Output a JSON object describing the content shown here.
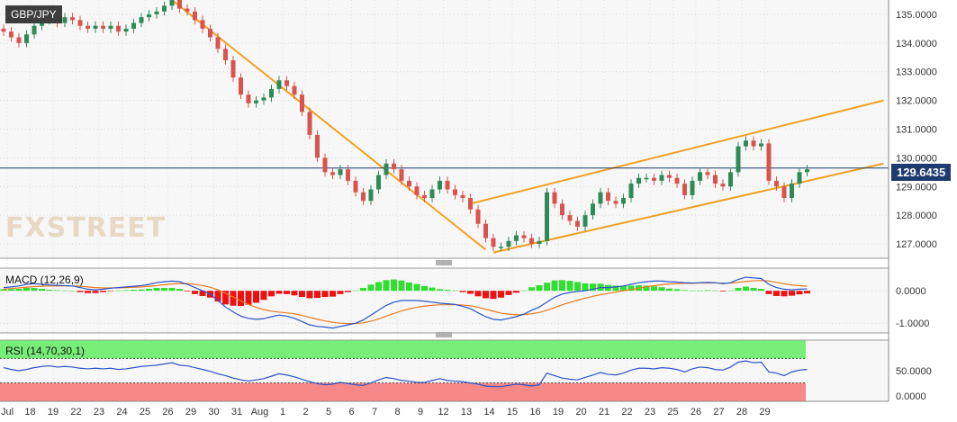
{
  "symbol": "GBP/JPY",
  "current_price": "129.6435",
  "logo_text": "FXSTREET",
  "colors": {
    "up": "#2e8b57",
    "down": "#d9534f",
    "trendline": "#f0a020",
    "price_line": "#1f3a6e",
    "macd_line": "#2a55c8",
    "signal_line": "#e87a20",
    "hist_pos": "#33dd33",
    "hist_neg": "#ee1111",
    "rsi_line": "#2a55c8",
    "rsi_overbought": "#77ee77",
    "rsi_oversold": "#f78888"
  },
  "x_labels": [
    "Jul",
    "18",
    "19",
    "22",
    "23",
    "24",
    "25",
    "26",
    "29",
    "30",
    "31",
    "Aug",
    "1",
    "2",
    "5",
    "6",
    "7",
    "8",
    "9",
    "12",
    "13",
    "14",
    "15",
    "16",
    "19",
    "20",
    "21",
    "22",
    "23",
    "25",
    "26",
    "27",
    "28",
    "29"
  ],
  "chart_data": [
    {
      "type": "candlestick",
      "title": "GBP/JPY",
      "y_ticks": [
        "135.0000",
        "134.0000",
        "133.0000",
        "132.0000",
        "131.0000",
        "130.0000",
        "129.0000",
        "128.0000",
        "127.0000"
      ],
      "ylim": [
        126.5,
        135.5
      ],
      "last_price": 129.6435,
      "closes": [
        134.4,
        134.2,
        134.0,
        134.3,
        134.6,
        134.8,
        134.9,
        134.7,
        134.9,
        134.8,
        134.6,
        134.5,
        134.6,
        134.5,
        134.6,
        134.4,
        134.5,
        134.7,
        134.9,
        135.0,
        135.1,
        135.3,
        135.5,
        135.2,
        135.1,
        134.8,
        134.5,
        134.2,
        133.8,
        133.4,
        132.8,
        132.2,
        131.9,
        132.0,
        132.1,
        132.4,
        132.7,
        132.5,
        132.2,
        131.6,
        130.8,
        130.0,
        129.5,
        129.4,
        129.6,
        129.2,
        128.8,
        128.5,
        128.9,
        129.4,
        129.8,
        129.6,
        129.2,
        129.0,
        128.7,
        128.6,
        128.9,
        129.2,
        128.9,
        128.7,
        128.6,
        128.2,
        127.7,
        127.2,
        126.9,
        126.9,
        127.1,
        127.3,
        127.2,
        127.0,
        127.1,
        128.8,
        128.4,
        128.0,
        127.8,
        127.6,
        128.0,
        128.4,
        128.8,
        128.5,
        128.4,
        128.6,
        129.1,
        129.3,
        129.3,
        129.2,
        129.4,
        129.3,
        129.1,
        128.7,
        129.2,
        129.5,
        129.4,
        129.1,
        129.0,
        129.5,
        130.4,
        130.6,
        130.4,
        130.5,
        129.2,
        129.0,
        128.6,
        129.1,
        129.5,
        129.6
      ]
    },
    {
      "type": "line",
      "title": "MACD (12,26,9)",
      "y_ticks": [
        "0.0000",
        "-1.0000"
      ],
      "ylim": [
        -1.3,
        0.7
      ],
      "macd": [
        0.1,
        0.12,
        0.15,
        0.2,
        0.22,
        0.2,
        0.18,
        0.17,
        0.16,
        0.15,
        0.1,
        0.05,
        0.03,
        0.05,
        0.08,
        0.1,
        0.12,
        0.14,
        0.16,
        0.2,
        0.25,
        0.28,
        0.3,
        0.28,
        0.2,
        0.1,
        0.0,
        -0.1,
        -0.3,
        -0.5,
        -0.65,
        -0.78,
        -0.85,
        -0.88,
        -0.86,
        -0.8,
        -0.75,
        -0.78,
        -0.85,
        -0.95,
        -1.05,
        -1.1,
        -1.12,
        -1.15,
        -1.1,
        -1.05,
        -1.0,
        -0.9,
        -0.75,
        -0.6,
        -0.45,
        -0.35,
        -0.3,
        -0.3,
        -0.3,
        -0.32,
        -0.35,
        -0.38,
        -0.4,
        -0.42,
        -0.48,
        -0.55,
        -0.68,
        -0.8,
        -0.88,
        -0.9,
        -0.85,
        -0.8,
        -0.72,
        -0.6,
        -0.5,
        -0.35,
        -0.2,
        -0.1,
        -0.05,
        -0.02,
        0.0,
        0.05,
        0.1,
        0.1,
        0.12,
        0.15,
        0.2,
        0.25,
        0.28,
        0.3,
        0.3,
        0.28,
        0.27,
        0.25,
        0.24,
        0.25,
        0.26,
        0.25,
        0.22,
        0.25,
        0.35,
        0.42,
        0.4,
        0.38,
        0.2,
        0.1,
        0.05,
        0.03,
        0.05,
        0.06
      ],
      "signal": [
        0.05,
        0.07,
        0.09,
        0.11,
        0.13,
        0.14,
        0.15,
        0.15,
        0.15,
        0.15,
        0.14,
        0.12,
        0.1,
        0.09,
        0.09,
        0.09,
        0.1,
        0.11,
        0.12,
        0.14,
        0.16,
        0.19,
        0.21,
        0.22,
        0.22,
        0.2,
        0.16,
        0.11,
        0.03,
        -0.08,
        -0.19,
        -0.31,
        -0.42,
        -0.51,
        -0.58,
        -0.63,
        -0.66,
        -0.68,
        -0.71,
        -0.76,
        -0.82,
        -0.88,
        -0.93,
        -0.97,
        -1.0,
        -1.01,
        -1.01,
        -0.99,
        -0.94,
        -0.87,
        -0.78,
        -0.7,
        -0.62,
        -0.56,
        -0.51,
        -0.47,
        -0.45,
        -0.43,
        -0.43,
        -0.43,
        -0.44,
        -0.46,
        -0.51,
        -0.57,
        -0.63,
        -0.69,
        -0.72,
        -0.74,
        -0.73,
        -0.71,
        -0.67,
        -0.6,
        -0.52,
        -0.43,
        -0.36,
        -0.29,
        -0.23,
        -0.17,
        -0.12,
        -0.08,
        -0.04,
        -0.0,
        0.04,
        0.08,
        0.12,
        0.16,
        0.19,
        0.21,
        0.22,
        0.23,
        0.23,
        0.24,
        0.24,
        0.24,
        0.24,
        0.24,
        0.26,
        0.29,
        0.31,
        0.32,
        0.3,
        0.26,
        0.22,
        0.18,
        0.16,
        0.14
      ]
    },
    {
      "type": "line",
      "title": "RSI (14,70,30,1)",
      "y_ticks": [
        "50.0000",
        "0.0000"
      ],
      "ylim": [
        0,
        100
      ],
      "overbought": 70,
      "oversold": 30,
      "values": [
        55,
        52,
        50,
        52,
        55,
        57,
        58,
        56,
        57,
        56,
        54,
        53,
        54,
        53,
        54,
        52,
        53,
        55,
        57,
        58,
        59,
        61,
        63,
        59,
        58,
        55,
        52,
        49,
        45,
        42,
        38,
        35,
        33,
        35,
        37,
        41,
        45,
        43,
        40,
        36,
        32,
        29,
        27,
        28,
        31,
        29,
        27,
        26,
        30,
        35,
        39,
        37,
        34,
        33,
        31,
        31,
        34,
        37,
        34,
        33,
        32,
        30,
        28,
        25,
        24,
        24,
        26,
        28,
        27,
        25,
        27,
        46,
        42,
        38,
        36,
        35,
        39,
        43,
        47,
        44,
        43,
        46,
        51,
        54,
        54,
        53,
        55,
        54,
        52,
        48,
        53,
        56,
        55,
        52,
        51,
        56,
        64,
        66,
        63,
        64,
        48,
        46,
        42,
        48,
        51,
        52
      ]
    }
  ],
  "trendlines": [
    {
      "name": "downtrend",
      "from": [
        22,
        135.5
      ],
      "to": [
        63,
        126.8
      ]
    },
    {
      "name": "channel-upper",
      "from": [
        61,
        128.4
      ],
      "to": [
        115,
        132.0
      ]
    },
    {
      "name": "channel-lower",
      "from": [
        64,
        126.7
      ],
      "to": [
        115,
        129.8
      ]
    }
  ]
}
